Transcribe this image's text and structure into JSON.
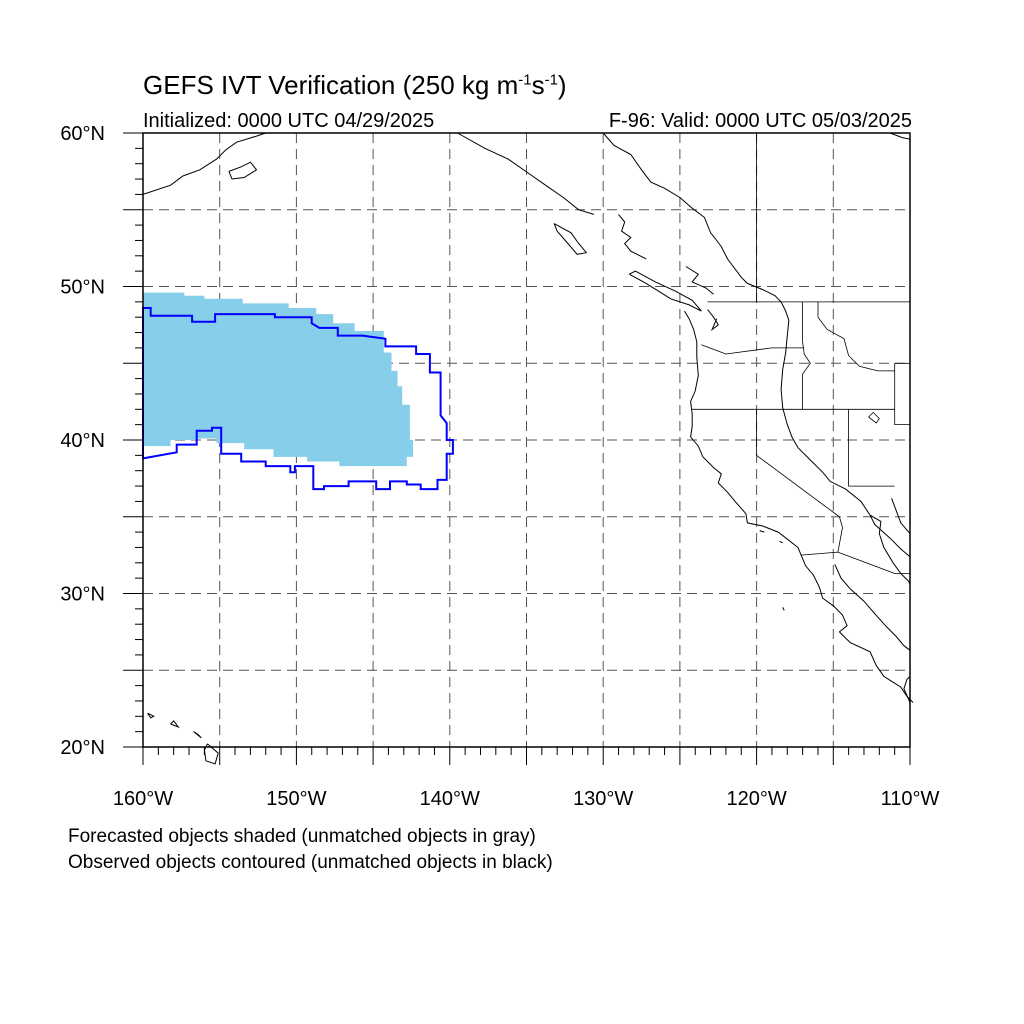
{
  "title": {
    "prefix": "GEFS IVT Verification (250 kg m",
    "exp1": "-1",
    "mid": "s",
    "exp2": "-1",
    "suffix": ")"
  },
  "initialized": "Initialized: 0000 UTC 04/29/2025",
  "valid": "F-96: Valid: 0000 UTC 05/03/2025",
  "footer": {
    "line1": "Forecasted objects shaded (unmatched objects in gray)",
    "line2": "Observed objects contoured (unmatched objects in black)"
  },
  "map": {
    "lon_range": [
      -160,
      -110
    ],
    "lat_range": [
      20,
      60
    ],
    "y_ticks": [
      {
        "lat": 20,
        "label": "20°N"
      },
      {
        "lat": 30,
        "label": "30°N"
      },
      {
        "lat": 40,
        "label": "40°N"
      },
      {
        "lat": 50,
        "label": "50°N"
      },
      {
        "lat": 60,
        "label": "60°N"
      }
    ],
    "x_ticks": [
      {
        "lon": -160,
        "label": "160°W"
      },
      {
        "lon": -150,
        "label": "150°W"
      },
      {
        "lon": -140,
        "label": "140°W"
      },
      {
        "lon": -130,
        "label": "130°W"
      },
      {
        "lon": -120,
        "label": "120°W"
      },
      {
        "lon": -110,
        "label": "110°W"
      }
    ],
    "colors": {
      "forecast_fill": "#87ceeb",
      "observed_contour": "#0000ff",
      "coast": "#000000",
      "grid": "#555555"
    },
    "forecast_object": [
      [
        -160,
        49.6
      ],
      [
        -157.3,
        49.6
      ],
      [
        -157.3,
        49.4
      ],
      [
        -156,
        49.4
      ],
      [
        -156,
        49.2
      ],
      [
        -153.5,
        49.2
      ],
      [
        -153.5,
        48.9
      ],
      [
        -150.5,
        48.9
      ],
      [
        -150.5,
        48.6
      ],
      [
        -148.7,
        48.6
      ],
      [
        -148.7,
        48.2
      ],
      [
        -147.6,
        48.2
      ],
      [
        -147.6,
        47.6
      ],
      [
        -146.2,
        47.6
      ],
      [
        -146.2,
        47.1
      ],
      [
        -144.3,
        47.1
      ],
      [
        -144.3,
        45.7
      ],
      [
        -143.8,
        45.7
      ],
      [
        -143.8,
        44.5
      ],
      [
        -143.4,
        44.5
      ],
      [
        -143.4,
        43.5
      ],
      [
        -143.1,
        43.5
      ],
      [
        -143.1,
        42.3
      ],
      [
        -142.6,
        42.3
      ],
      [
        -142.6,
        40.0
      ],
      [
        -142.4,
        40.0
      ],
      [
        -142.4,
        38.9
      ],
      [
        -142.8,
        38.9
      ],
      [
        -142.8,
        38.3
      ],
      [
        -147.2,
        38.3
      ],
      [
        -147.2,
        38.6
      ],
      [
        -149.3,
        38.6
      ],
      [
        -149.3,
        38.9
      ],
      [
        -151.5,
        38.9
      ],
      [
        -151.5,
        39.4
      ],
      [
        -153.4,
        39.4
      ],
      [
        -153.4,
        39.8
      ],
      [
        -155.2,
        39.8
      ],
      [
        -155.2,
        40.1
      ],
      [
        -156.4,
        40.1
      ],
      [
        -156.4,
        40.0
      ],
      [
        -158.2,
        40.0
      ],
      [
        -158.2,
        39.6
      ],
      [
        -160,
        39.6
      ]
    ],
    "observed_object": [
      [
        -160,
        48.6
      ],
      [
        -159.5,
        48.6
      ],
      [
        -159.5,
        48.1
      ],
      [
        -156.8,
        48.1
      ],
      [
        -156.8,
        47.7
      ],
      [
        -156.6,
        47.7
      ],
      [
        -155.3,
        47.7
      ],
      [
        -155.3,
        48.2
      ],
      [
        -151.4,
        48.2
      ],
      [
        -151.4,
        48.0
      ],
      [
        -149.0,
        48.0
      ],
      [
        -149.0,
        47.6
      ],
      [
        -148.5,
        47.3
      ],
      [
        -147.3,
        47.3
      ],
      [
        -147.3,
        46.8
      ],
      [
        -145.7,
        46.8
      ],
      [
        -144.2,
        46.6
      ],
      [
        -144.2,
        46.1
      ],
      [
        -142.2,
        46.1
      ],
      [
        -142.2,
        45.6
      ],
      [
        -141.3,
        45.6
      ],
      [
        -141.3,
        44.4
      ],
      [
        -140.6,
        44.4
      ],
      [
        -140.6,
        43.1
      ],
      [
        -140.6,
        41.6
      ],
      [
        -140.2,
        41.1
      ],
      [
        -140.2,
        40.0
      ],
      [
        -139.8,
        40.0
      ],
      [
        -139.8,
        39.1
      ],
      [
        -140.2,
        39.1
      ],
      [
        -140.2,
        37.4
      ],
      [
        -140.8,
        37.4
      ],
      [
        -140.8,
        36.8
      ],
      [
        -141.9,
        36.8
      ],
      [
        -141.9,
        37.1
      ],
      [
        -142.8,
        37.1
      ],
      [
        -142.8,
        37.3
      ],
      [
        -143.9,
        37.3
      ],
      [
        -143.9,
        36.8
      ],
      [
        -144.8,
        36.8
      ],
      [
        -144.8,
        37.3
      ],
      [
        -146.6,
        37.3
      ],
      [
        -146.6,
        37.0
      ],
      [
        -148.2,
        37.0
      ],
      [
        -148.2,
        36.8
      ],
      [
        -148.9,
        36.8
      ],
      [
        -148.9,
        38.3
      ],
      [
        -150.1,
        38.3
      ],
      [
        -150.1,
        37.9
      ],
      [
        -150.4,
        37.9
      ],
      [
        -150.4,
        38.3
      ],
      [
        -152.0,
        38.3
      ],
      [
        -152.0,
        38.6
      ],
      [
        -153.6,
        38.6
      ],
      [
        -153.6,
        39.1
      ],
      [
        -154.9,
        39.1
      ],
      [
        -154.9,
        40.8
      ],
      [
        -155.5,
        40.8
      ],
      [
        -155.5,
        40.6
      ],
      [
        -156.5,
        40.6
      ],
      [
        -156.5,
        39.7
      ],
      [
        -157.8,
        39.7
      ],
      [
        -157.8,
        39.2
      ],
      [
        -160,
        38.8
      ]
    ],
    "coastlines": [
      [
        [
          -130,
          60
        ],
        [
          -129.3,
          59.2
        ],
        [
          -128.2,
          58.6
        ],
        [
          -127.5,
          57.6
        ],
        [
          -126.9,
          56.8
        ],
        [
          -126.0,
          56.4
        ],
        [
          -125.0,
          55.8
        ],
        [
          -124.2,
          55.1
        ],
        [
          -123.4,
          54.5
        ],
        [
          -123.0,
          53.5
        ],
        [
          -122.6,
          53.0
        ],
        [
          -122.3,
          52.6
        ],
        [
          -121.9,
          51.8
        ],
        [
          -121.0,
          50.6
        ],
        [
          -120.6,
          50.2
        ],
        [
          -119.6,
          49.8
        ],
        [
          -118.8,
          49.4
        ],
        [
          -118.4,
          49.0
        ],
        [
          -118.1,
          48.4
        ],
        [
          -117.9,
          47.8
        ],
        [
          -118.0,
          46.8
        ],
        [
          -118.1,
          45.7
        ],
        [
          -118.3,
          44.6
        ],
        [
          -118.4,
          43.3
        ],
        [
          -118.3,
          42.1
        ],
        [
          -118.0,
          41.0
        ],
        [
          -117.7,
          40.2
        ],
        [
          -117.3,
          39.5
        ],
        [
          -116.5,
          38.7
        ],
        [
          -115.7,
          37.9
        ],
        [
          -115.2,
          37.3
        ],
        [
          -114.2,
          36.8
        ],
        [
          -113.2,
          36.0
        ],
        [
          -112.6,
          35.1
        ],
        [
          -112.3,
          34.5
        ],
        [
          -111.3,
          33.6
        ],
        [
          -110.6,
          32.9
        ],
        [
          -110.0,
          32.4
        ]
      ],
      [
        [
          -112.6,
          35.1
        ],
        [
          -111.9,
          34.7
        ],
        [
          -112.0,
          33.9
        ],
        [
          -111.7,
          33.0
        ],
        [
          -111.1,
          32.0
        ],
        [
          -110.6,
          31.3
        ],
        [
          -110.1,
          30.8
        ],
        [
          -110.0,
          30.6
        ]
      ],
      [
        [
          -111.2,
          36.2
        ],
        [
          -110.6,
          34.6
        ],
        [
          -110.0,
          33.9
        ]
      ],
      [
        [
          -129.0,
          54.7
        ],
        [
          -128.6,
          54.2
        ],
        [
          -128.8,
          53.6
        ],
        [
          -128.2,
          53.2
        ],
        [
          -128.6,
          52.8
        ],
        [
          -128.2,
          52.3
        ],
        [
          -127.2,
          51.8
        ]
      ],
      [
        [
          -124.6,
          51.3
        ],
        [
          -123.8,
          50.8
        ],
        [
          -124.2,
          50.3
        ],
        [
          -123.3,
          49.9
        ],
        [
          -122.8,
          49.5
        ]
      ],
      [
        [
          -128.3,
          50.8
        ],
        [
          -127.2,
          50.2
        ],
        [
          -126.4,
          49.7
        ],
        [
          -125.6,
          49.2
        ],
        [
          -124.4,
          48.8
        ],
        [
          -123.6,
          48.4
        ],
        [
          -124.2,
          49.1
        ],
        [
          -125.3,
          49.7
        ],
        [
          -126.6,
          50.3
        ],
        [
          -127.9,
          51.0
        ],
        [
          -128.3,
          50.8
        ]
      ],
      [
        [
          -124.7,
          48.4
        ],
        [
          -124.4,
          47.9
        ],
        [
          -124.1,
          47.2
        ],
        [
          -123.9,
          46.4
        ],
        [
          -123.9,
          45.4
        ],
        [
          -123.8,
          44.2
        ],
        [
          -124.0,
          43.2
        ],
        [
          -124.3,
          42.5
        ],
        [
          -124.2,
          41.7
        ],
        [
          -124.2,
          40.9
        ],
        [
          -124.3,
          40.2
        ],
        [
          -123.8,
          39.6
        ],
        [
          -123.5,
          38.9
        ],
        [
          -122.8,
          38.2
        ],
        [
          -122.3,
          37.8
        ],
        [
          -122.5,
          37.2
        ],
        [
          -121.9,
          36.6
        ],
        [
          -121.4,
          36.0
        ],
        [
          -120.7,
          35.2
        ],
        [
          -120.6,
          34.6
        ],
        [
          -119.6,
          34.4
        ],
        [
          -118.6,
          34.0
        ],
        [
          -118.2,
          33.7
        ],
        [
          -117.3,
          33.0
        ],
        [
          -117.1,
          32.5
        ],
        [
          -116.8,
          31.8
        ],
        [
          -116.3,
          31.2
        ],
        [
          -115.9,
          30.4
        ],
        [
          -115.7,
          29.7
        ],
        [
          -115.0,
          29.2
        ],
        [
          -114.4,
          28.6
        ],
        [
          -114.1,
          27.9
        ],
        [
          -114.6,
          27.5
        ],
        [
          -113.9,
          26.8
        ],
        [
          -112.6,
          26.2
        ],
        [
          -112.2,
          25.3
        ],
        [
          -111.7,
          24.6
        ],
        [
          -110.6,
          23.9
        ],
        [
          -110.2,
          23.3
        ],
        [
          -109.8,
          22.9
        ]
      ],
      [
        [
          -114.9,
          31.9
        ],
        [
          -114.5,
          31.0
        ],
        [
          -113.9,
          30.3
        ],
        [
          -113.0,
          29.5
        ],
        [
          -112.4,
          28.8
        ],
        [
          -111.6,
          27.9
        ],
        [
          -110.9,
          27.2
        ],
        [
          -110.4,
          26.6
        ],
        [
          -110.0,
          26.3
        ]
      ],
      [
        [
          -110.0,
          22.9
        ],
        [
          -110.4,
          23.8
        ],
        [
          -110.2,
          24.4
        ],
        [
          -110.0,
          24.6
        ]
      ],
      [
        [
          -123.2,
          48.5
        ],
        [
          -122.8,
          48.0
        ],
        [
          -122.5,
          47.5
        ],
        [
          -122.9,
          47.2
        ],
        [
          -122.6,
          47.9
        ]
      ],
      [
        [
          -160,
          56.0
        ],
        [
          -158.2,
          56.6
        ],
        [
          -157.4,
          57.2
        ],
        [
          -156.3,
          57.6
        ],
        [
          -155.2,
          58.3
        ],
        [
          -154.6,
          58.9
        ],
        [
          -153.9,
          59.4
        ],
        [
          -152.6,
          59.8
        ],
        [
          -152.0,
          60
        ]
      ],
      [
        [
          -154.4,
          57.5
        ],
        [
          -153.6,
          57.8
        ],
        [
          -153.0,
          58.1
        ],
        [
          -152.6,
          57.6
        ],
        [
          -153.4,
          57.1
        ],
        [
          -154.2,
          57.0
        ],
        [
          -154.4,
          57.5
        ]
      ],
      [
        [
          -139.5,
          60
        ],
        [
          -137.7,
          59.0
        ],
        [
          -136.2,
          58.3
        ],
        [
          -134.9,
          57.4
        ],
        [
          -133.9,
          56.7
        ],
        [
          -132.6,
          55.8
        ],
        [
          -131.6,
          55.0
        ],
        [
          -130.6,
          54.7
        ]
      ],
      [
        [
          -133.2,
          54.1
        ],
        [
          -132.1,
          53.5
        ],
        [
          -131.6,
          52.8
        ],
        [
          -131.1,
          52.2
        ],
        [
          -131.7,
          52.1
        ],
        [
          -132.3,
          52.8
        ],
        [
          -133.0,
          53.6
        ],
        [
          -133.2,
          54.1
        ]
      ],
      [
        [
          -111.3,
          60
        ],
        [
          -110.5,
          59.7
        ],
        [
          -110.0,
          59.6
        ]
      ],
      [
        [
          -155.8,
          20.2
        ],
        [
          -155.1,
          19.6
        ],
        [
          -155.3,
          18.9
        ],
        [
          -155.9,
          19.1
        ],
        [
          -156.0,
          19.8
        ],
        [
          -155.8,
          20.2
        ]
      ],
      [
        [
          -156.7,
          21.0
        ],
        [
          -156.2,
          20.6
        ],
        [
          -156.4,
          20.8
        ],
        [
          -156.7,
          21.0
        ]
      ],
      [
        [
          -158.2,
          21.5
        ],
        [
          -157.7,
          21.3
        ],
        [
          -158.0,
          21.7
        ],
        [
          -158.2,
          21.5
        ]
      ],
      [
        [
          -159.7,
          22.2
        ],
        [
          -159.3,
          22.0
        ],
        [
          -159.5,
          21.9
        ],
        [
          -159.7,
          22.2
        ]
      ],
      [
        [
          -118.5,
          33.4
        ],
        [
          -118.3,
          33.3
        ],
        [
          -118.5,
          33.4
        ]
      ],
      [
        [
          -119.8,
          34.1
        ],
        [
          -119.5,
          34.0
        ],
        [
          -119.8,
          34.1
        ]
      ],
      [
        [
          -118.3,
          29.1
        ],
        [
          -118.2,
          28.9
        ],
        [
          -118.3,
          29.1
        ]
      ]
    ],
    "borders": [
      [
        [
          -123.2,
          49.0
        ],
        [
          -110,
          49.0
        ]
      ],
      [
        [
          -120,
          60
        ],
        [
          -120,
          49.0
        ]
      ],
      [
        [
          -124.2,
          42.0
        ],
        [
          -111.0,
          42.0
        ]
      ],
      [
        [
          -120,
          42.0
        ],
        [
          -120,
          39.0
        ],
        [
          -114.6,
          35.0
        ],
        [
          -114.4,
          34.3
        ],
        [
          -114.7,
          32.7
        ]
      ],
      [
        [
          -117.1,
          32.5
        ],
        [
          -114.7,
          32.7
        ],
        [
          -111.0,
          31.3
        ],
        [
          -110,
          31.3
        ]
      ],
      [
        [
          -117.0,
          49.0
        ],
        [
          -117.0,
          46.4
        ],
        [
          -116.9,
          45.6
        ],
        [
          -116.5,
          45.0
        ],
        [
          -117.0,
          44.3
        ],
        [
          -117.0,
          42.0
        ]
      ],
      [
        [
          -123.6,
          46.2
        ],
        [
          -122.0,
          45.6
        ],
        [
          -119.0,
          46.0
        ],
        [
          -116.9,
          46.0
        ]
      ],
      [
        [
          -114.0,
          42.0
        ],
        [
          -114.0,
          37.0
        ],
        [
          -111.0,
          37.0
        ]
      ],
      [
        [
          -111.0,
          45.0
        ],
        [
          -111.0,
          41.0
        ],
        [
          -110,
          41.0
        ]
      ],
      [
        [
          -116.0,
          49.0
        ],
        [
          -116.0,
          48.0
        ],
        [
          -115.4,
          47.2
        ],
        [
          -114.3,
          46.6
        ],
        [
          -114.0,
          45.5
        ],
        [
          -113.3,
          44.8
        ],
        [
          -112.1,
          44.5
        ],
        [
          -111.0,
          44.5
        ]
      ],
      [
        [
          -111.0,
          45.0
        ],
        [
          -110,
          45.0
        ]
      ]
    ],
    "lakes": [
      [
        [
          -112.7,
          41.5
        ],
        [
          -112.2,
          41.1
        ],
        [
          -112.0,
          41.4
        ],
        [
          -112.4,
          41.8
        ],
        [
          -112.7,
          41.5
        ]
      ]
    ]
  }
}
